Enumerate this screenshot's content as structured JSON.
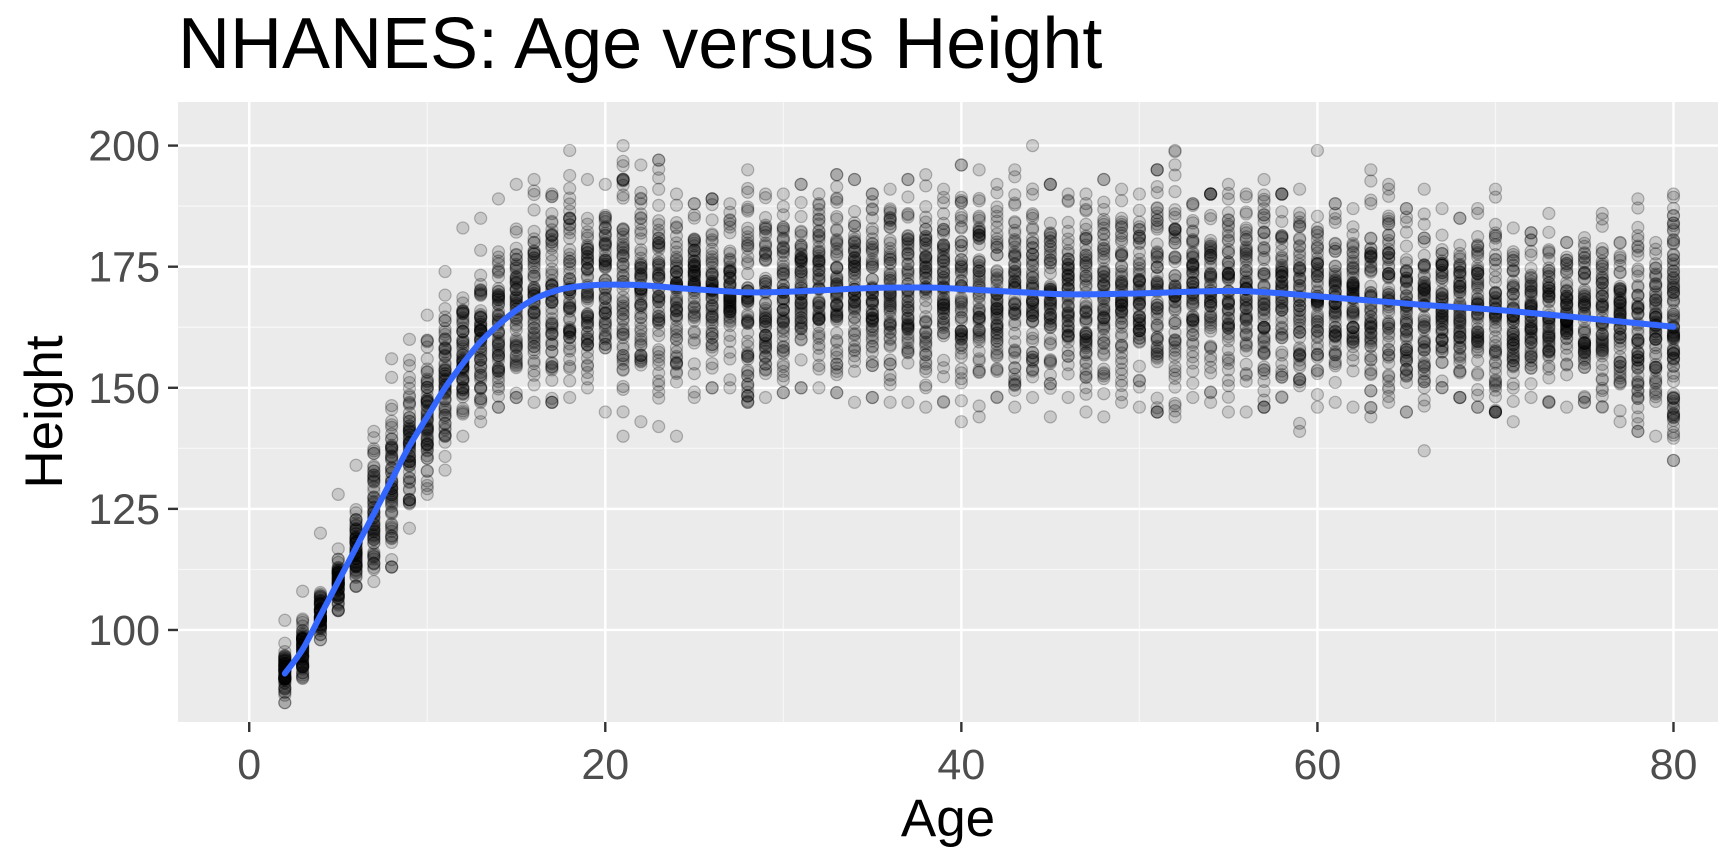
{
  "chart_data": {
    "type": "scatter",
    "title": "NHANES: Age versus Height",
    "xlabel": "Age",
    "ylabel": "Height",
    "xlim": [
      -4,
      82.5
    ],
    "ylim": [
      81,
      209
    ],
    "x_ticks": [
      0,
      20,
      40,
      60,
      80
    ],
    "x_tick_labels": [
      "0",
      "20",
      "40",
      "60",
      "80"
    ],
    "y_ticks": [
      100,
      125,
      150,
      175,
      200
    ],
    "y_tick_labels": [
      "100",
      "125",
      "150",
      "175",
      "200"
    ],
    "x_minor_ticks": [
      10,
      30,
      50,
      70
    ],
    "y_minor_ticks": [
      112.5,
      137.5,
      162.5,
      187.5
    ],
    "grid": true,
    "legend": "none",
    "colors": {
      "panel_background": "#ebebeb",
      "grid_major": "#ffffff",
      "grid_minor": "#f7f7f7",
      "point_fill": "#000000",
      "point_opacity": 0.15,
      "smooth_line": "#3366ff"
    },
    "series": [
      {
        "kind": "points",
        "description_age_range": [
          2,
          80
        ],
        "per_age_height_range": [
          [
            2,
            85,
            102
          ],
          [
            3,
            90,
            108
          ],
          [
            4,
            98,
            120
          ],
          [
            5,
            104,
            128
          ],
          [
            6,
            109,
            134
          ],
          [
            7,
            110,
            141
          ],
          [
            8,
            113,
            156
          ],
          [
            9,
            121,
            160
          ],
          [
            10,
            128,
            165
          ],
          [
            11,
            133,
            174
          ],
          [
            12,
            140,
            183
          ],
          [
            13,
            143,
            185
          ],
          [
            14,
            146,
            189
          ],
          [
            15,
            148,
            192
          ],
          [
            16,
            147,
            193
          ],
          [
            17,
            147,
            190
          ],
          [
            18,
            148,
            199
          ],
          [
            19,
            150,
            193
          ],
          [
            20,
            145,
            192
          ],
          [
            21,
            140,
            200
          ],
          [
            22,
            143,
            196
          ],
          [
            23,
            142,
            197
          ],
          [
            24,
            140,
            190
          ],
          [
            25,
            148,
            188
          ],
          [
            26,
            150,
            189
          ],
          [
            27,
            150,
            188
          ],
          [
            28,
            147,
            195
          ],
          [
            29,
            148,
            190
          ],
          [
            30,
            149,
            190
          ],
          [
            31,
            150,
            192
          ],
          [
            32,
            150,
            190
          ],
          [
            33,
            149,
            194
          ],
          [
            34,
            147,
            193
          ],
          [
            35,
            148,
            190
          ],
          [
            36,
            147,
            191
          ],
          [
            37,
            147,
            193
          ],
          [
            38,
            146,
            194
          ],
          [
            39,
            147,
            191
          ],
          [
            40,
            143,
            196
          ],
          [
            41,
            144,
            195
          ],
          [
            42,
            148,
            192
          ],
          [
            43,
            146,
            195
          ],
          [
            44,
            148,
            200
          ],
          [
            45,
            144,
            192
          ],
          [
            46,
            148,
            190
          ],
          [
            47,
            145,
            190
          ],
          [
            48,
            144,
            193
          ],
          [
            49,
            147,
            191
          ],
          [
            50,
            146,
            190
          ],
          [
            51,
            145,
            195
          ],
          [
            52,
            144,
            199
          ],
          [
            53,
            148,
            188
          ],
          [
            54,
            147,
            190
          ],
          [
            55,
            145,
            192
          ],
          [
            56,
            145,
            190
          ],
          [
            57,
            146,
            193
          ],
          [
            58,
            148,
            190
          ],
          [
            59,
            141,
            191
          ],
          [
            60,
            146,
            199
          ],
          [
            61,
            147,
            188
          ],
          [
            62,
            146,
            187
          ],
          [
            63,
            144,
            195
          ],
          [
            64,
            147,
            192
          ],
          [
            65,
            145,
            187
          ],
          [
            66,
            137,
            191
          ],
          [
            67,
            150,
            187
          ],
          [
            68,
            148,
            185
          ],
          [
            69,
            146,
            187
          ],
          [
            70,
            145,
            191
          ],
          [
            71,
            143,
            183
          ],
          [
            72,
            148,
            182
          ],
          [
            73,
            147,
            186
          ],
          [
            74,
            146,
            180
          ],
          [
            75,
            147,
            181
          ],
          [
            76,
            146,
            186
          ],
          [
            77,
            143,
            180
          ],
          [
            78,
            141,
            189
          ],
          [
            79,
            140,
            180
          ],
          [
            80,
            135,
            190
          ]
        ]
      },
      {
        "kind": "smooth",
        "x": [
          2,
          3,
          4,
          5,
          6,
          7,
          8,
          9,
          10,
          11,
          12,
          13,
          14,
          15,
          16,
          17,
          18,
          19,
          20,
          22,
          24,
          26,
          28,
          30,
          32,
          35,
          38,
          40,
          43,
          46,
          50,
          55,
          58,
          60,
          63,
          66,
          70,
          75,
          80
        ],
        "y": [
          91,
          96,
          103,
          110,
          117,
          124,
          131,
          138,
          144,
          150,
          155,
          159.5,
          163,
          166,
          168.3,
          169.8,
          170.7,
          171.1,
          171.3,
          171.2,
          170.6,
          170.1,
          169.7,
          169.8,
          170.1,
          170.6,
          170.7,
          170.4,
          169.8,
          169.3,
          169.5,
          170.0,
          169.5,
          168.9,
          168.0,
          167.1,
          166.1,
          164.4,
          162.6
        ]
      }
    ]
  }
}
